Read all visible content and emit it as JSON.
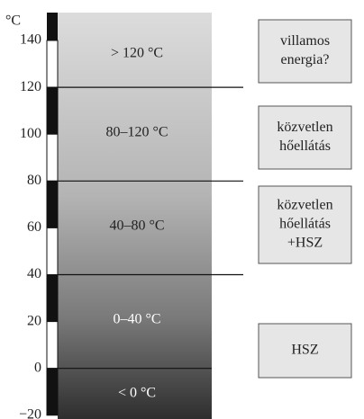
{
  "scale": {
    "unit": "°C",
    "ticks": [
      "140",
      "120",
      "100",
      "80",
      "60",
      "40",
      "20",
      "0",
      "−20"
    ]
  },
  "bands": [
    {
      "label": "> 120 °C"
    },
    {
      "label": "80–120 °C"
    },
    {
      "label": "40–80 °C"
    },
    {
      "label": "0–40 °C"
    },
    {
      "label": "< 0 °C"
    }
  ],
  "boxes": [
    {
      "lines": [
        "villamos",
        "energia?"
      ]
    },
    {
      "lines": [
        "közvetlen",
        "hőellátás"
      ]
    },
    {
      "lines": [
        "közvetlen",
        "hőellátás",
        "+HSZ"
      ]
    },
    {
      "lines": [
        "HSZ"
      ]
    }
  ]
}
